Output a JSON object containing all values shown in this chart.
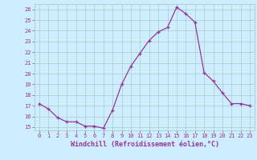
{
  "x": [
    0,
    1,
    2,
    3,
    4,
    5,
    6,
    7,
    8,
    9,
    10,
    11,
    12,
    13,
    14,
    15,
    16,
    17,
    18,
    19,
    20,
    21,
    22,
    23
  ],
  "y": [
    17.2,
    16.7,
    15.9,
    15.5,
    15.5,
    15.1,
    15.1,
    14.9,
    16.6,
    19.0,
    20.7,
    21.9,
    23.1,
    23.9,
    24.3,
    26.2,
    25.6,
    24.8,
    20.1,
    19.3,
    18.2,
    17.2,
    17.2,
    17.0
  ],
  "yticks": [
    15,
    16,
    17,
    18,
    19,
    20,
    21,
    22,
    23,
    24,
    25,
    26
  ],
  "line_color": "#993399",
  "marker_color": "#993399",
  "bg_color": "#cceeff",
  "grid_color": "#aacccc",
  "xlabel": "Windchill (Refroidissement éolien,°C)",
  "font_color": "#993399"
}
